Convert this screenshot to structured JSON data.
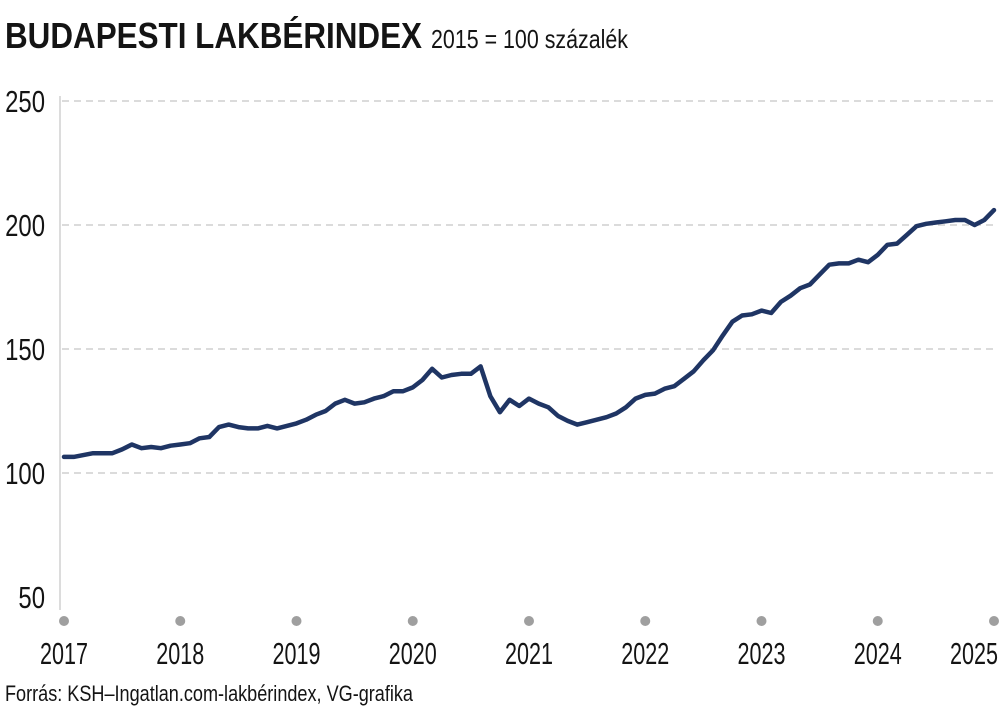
{
  "chart_data": {
    "type": "line",
    "title": "BUDAPESTI LAKBÉRINDEX",
    "subtitle": "2015 = 100 százalék",
    "source": "Forrás: KSH–Ingatlan.com-lakbérindex, VG-grafika",
    "x_ticks": [
      "2017",
      "2018",
      "2019",
      "2020",
      "2021",
      "2022",
      "2023",
      "2024",
      "2025"
    ],
    "y_ticks": [
      250,
      200,
      150,
      100,
      50
    ],
    "ylim": [
      50,
      250
    ],
    "xlim": [
      "2017-01",
      "2025-01"
    ],
    "grid": true,
    "colors": {
      "line": "#1f3564",
      "gridline": "#cfcfcf",
      "axis": "#c4c4c4",
      "tick_dot": "#9f9f9f",
      "text": "#141414"
    },
    "series": [
      {
        "x": [
          "2017-01",
          "2017-02",
          "2017-03",
          "2017-04",
          "2017-05",
          "2017-06",
          "2017-07",
          "2017-08",
          "2017-09",
          "2017-10",
          "2017-11",
          "2017-12",
          "2018-01",
          "2018-02",
          "2018-03",
          "2018-04",
          "2018-05",
          "2018-06",
          "2018-07",
          "2018-08",
          "2018-09",
          "2018-10",
          "2018-11",
          "2018-12",
          "2019-01",
          "2019-02",
          "2019-03",
          "2019-04",
          "2019-05",
          "2019-06",
          "2019-07",
          "2019-08",
          "2019-09",
          "2019-10",
          "2019-11",
          "2019-12",
          "2020-01",
          "2020-02",
          "2020-03",
          "2020-04",
          "2020-05",
          "2020-06",
          "2020-07",
          "2020-08",
          "2020-09",
          "2020-10",
          "2020-11",
          "2020-12",
          "2021-01",
          "2021-02",
          "2021-03",
          "2021-04",
          "2021-05",
          "2021-06",
          "2021-07",
          "2021-08",
          "2021-09",
          "2021-10",
          "2021-11",
          "2021-12",
          "2022-01",
          "2022-02",
          "2022-03",
          "2022-04",
          "2022-05",
          "2022-06",
          "2022-07",
          "2022-08",
          "2022-09",
          "2022-10",
          "2022-11",
          "2022-12",
          "2023-01",
          "2023-02",
          "2023-03",
          "2023-04",
          "2023-05",
          "2023-06",
          "2023-07",
          "2023-08",
          "2023-09",
          "2023-10",
          "2023-11",
          "2023-12",
          "2024-01",
          "2024-02",
          "2024-03",
          "2024-04",
          "2024-05",
          "2024-06",
          "2024-07",
          "2024-08",
          "2024-09",
          "2024-10",
          "2024-11",
          "2024-12",
          "2025-01"
        ],
        "values": [
          106.5,
          106.5,
          107.2,
          108,
          108,
          108,
          109.5,
          111.5,
          110,
          110.5,
          110,
          111,
          111.5,
          112,
          114,
          114.5,
          118.5,
          119.5,
          118.5,
          118,
          118,
          119,
          118,
          119,
          120,
          121.5,
          123.5,
          125,
          128,
          129.5,
          128,
          128.5,
          130,
          131,
          133,
          133,
          134.5,
          137.5,
          142,
          138.5,
          139.5,
          140,
          140,
          143,
          131,
          124.5,
          129.5,
          127,
          130,
          128,
          126.5,
          123,
          121,
          119.5,
          120.5,
          121.5,
          122.5,
          124,
          126.5,
          130,
          131.5,
          132,
          134,
          135,
          138,
          141,
          145.5,
          149.5,
          155.5,
          161,
          163.5,
          164,
          165.5,
          164.5,
          169,
          171.5,
          174.5,
          176,
          180,
          184,
          184.5,
          184.5,
          186,
          185,
          188,
          192,
          192.5,
          196,
          199.5,
          200.5,
          201,
          201.5,
          202,
          202,
          200,
          202,
          206
        ]
      }
    ]
  }
}
